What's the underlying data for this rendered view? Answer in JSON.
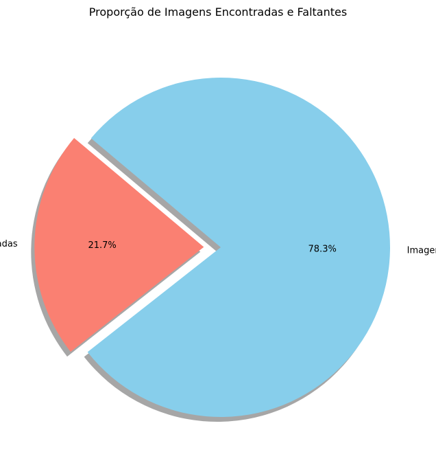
{
  "chart_data": {
    "type": "pie",
    "title": "Proporção de Imagens Encontradas e Faltantes",
    "categories": [
      "Imagens Encontradas",
      "Imagens faltantes"
    ],
    "values": [
      21.7,
      78.3
    ],
    "percent_labels": [
      "21.7%",
      "78.3%"
    ],
    "colors": [
      "#fa8072",
      "#87ceeb"
    ],
    "exploded": [
      true,
      false
    ],
    "shadow": true,
    "start_angle_deg": 140,
    "legend": "none"
  }
}
